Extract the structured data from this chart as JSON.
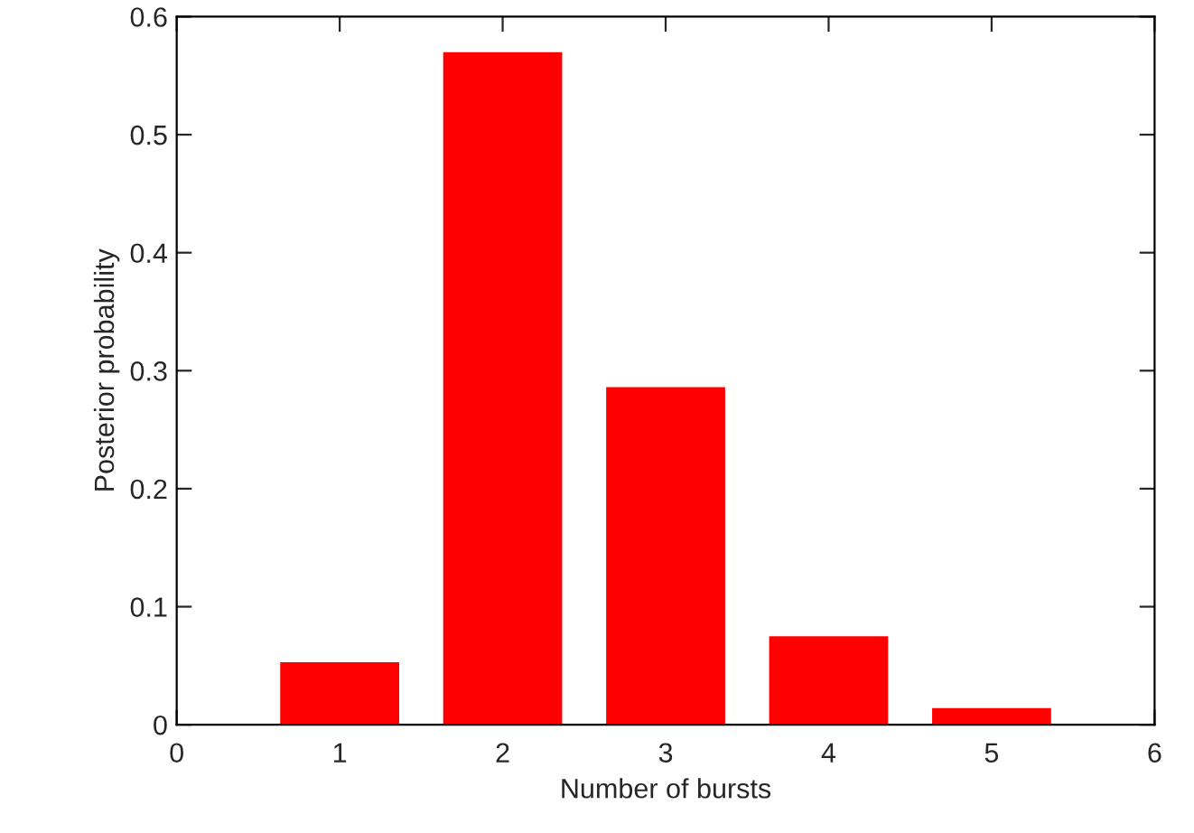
{
  "chart_data": {
    "type": "bar",
    "xlabel": "Number of bursts",
    "ylabel": "Posterior probability",
    "x": [
      1,
      2,
      3,
      4,
      5
    ],
    "series": [
      {
        "color": "#ff0000",
        "values": [
          0.053,
          0.57,
          0.286,
          0.075,
          0.014
        ]
      }
    ],
    "xlim": [
      0,
      6
    ],
    "xticks": [
      0,
      1,
      2,
      3,
      4,
      5,
      6
    ],
    "ylim": [
      0,
      0.6
    ],
    "yticks": [
      0,
      0.1,
      0.2,
      0.3,
      0.4,
      0.5,
      0.6
    ],
    "grid": false,
    "legend": false
  }
}
